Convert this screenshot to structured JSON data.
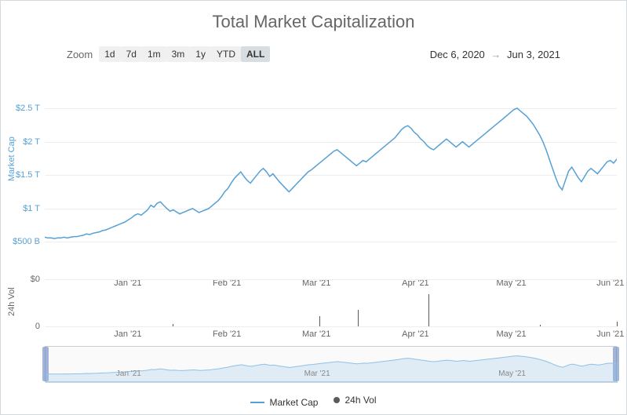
{
  "title": "Total Market Capitalization",
  "zoom": {
    "label": "Zoom",
    "options": [
      "1d",
      "7d",
      "1m",
      "3m",
      "1y",
      "YTD",
      "ALL"
    ],
    "active": "ALL"
  },
  "date_range": {
    "from": "Dec 6, 2020",
    "to": "Jun 3, 2021"
  },
  "colors": {
    "line": "#56a0d6",
    "line_light": "#8fc1e6",
    "grid": "#eeeeee",
    "vol_bar": "#5a5a5a",
    "title": "#666666",
    "axis_text": "#666666",
    "y_text": "#56a0d6",
    "border": "#d4d9de",
    "nav_mask": "rgba(102,133,194,0.18)",
    "nav_handle": "rgba(102,133,194,0.6)"
  },
  "main_chart": {
    "type": "line",
    "y_label": "Market Cap",
    "ylim": [
      0,
      2.7
    ],
    "y_ticks": [
      {
        "v": 0.5,
        "label": "$500 B"
      },
      {
        "v": 1.0,
        "label": "$1 T"
      },
      {
        "v": 1.5,
        "label": "$1.5 T"
      },
      {
        "v": 2.0,
        "label": "$2 T"
      },
      {
        "v": 2.5,
        "label": "$2.5 T"
      }
    ],
    "x_ticks": [
      {
        "t": 26,
        "label": "Jan '21"
      },
      {
        "t": 57,
        "label": "Feb '21"
      },
      {
        "t": 85,
        "label": "Mar '21"
      },
      {
        "t": 116,
        "label": "Apr '21"
      },
      {
        "t": 146,
        "label": "May '21"
      },
      {
        "t": 177,
        "label": "Jun '21"
      }
    ],
    "x_domain": [
      0,
      179
    ],
    "series": [
      0.57,
      0.56,
      0.56,
      0.55,
      0.56,
      0.56,
      0.57,
      0.56,
      0.57,
      0.58,
      0.58,
      0.59,
      0.6,
      0.62,
      0.61,
      0.63,
      0.64,
      0.65,
      0.67,
      0.68,
      0.7,
      0.72,
      0.74,
      0.76,
      0.78,
      0.8,
      0.83,
      0.86,
      0.9,
      0.92,
      0.9,
      0.94,
      0.98,
      1.05,
      1.02,
      1.08,
      1.1,
      1.05,
      1.0,
      0.96,
      0.98,
      0.95,
      0.92,
      0.94,
      0.96,
      0.98,
      1.0,
      0.97,
      0.94,
      0.96,
      0.98,
      1.0,
      1.04,
      1.08,
      1.12,
      1.18,
      1.25,
      1.3,
      1.38,
      1.45,
      1.5,
      1.55,
      1.48,
      1.42,
      1.38,
      1.44,
      1.5,
      1.56,
      1.6,
      1.55,
      1.48,
      1.52,
      1.46,
      1.4,
      1.35,
      1.3,
      1.25,
      1.3,
      1.35,
      1.4,
      1.45,
      1.5,
      1.55,
      1.58,
      1.62,
      1.66,
      1.7,
      1.74,
      1.78,
      1.82,
      1.86,
      1.88,
      1.84,
      1.8,
      1.76,
      1.72,
      1.68,
      1.64,
      1.68,
      1.72,
      1.7,
      1.74,
      1.78,
      1.82,
      1.86,
      1.9,
      1.94,
      1.98,
      2.02,
      2.06,
      2.12,
      2.18,
      2.22,
      2.24,
      2.2,
      2.14,
      2.1,
      2.04,
      2.0,
      1.94,
      1.9,
      1.88,
      1.92,
      1.96,
      2.0,
      2.04,
      2.0,
      1.96,
      1.92,
      1.96,
      2.0,
      1.96,
      1.92,
      1.96,
      2.0,
      2.04,
      2.08,
      2.12,
      2.16,
      2.2,
      2.24,
      2.28,
      2.32,
      2.36,
      2.4,
      2.44,
      2.48,
      2.5,
      2.46,
      2.42,
      2.38,
      2.32,
      2.26,
      2.18,
      2.1,
      2.0,
      1.88,
      1.74,
      1.6,
      1.46,
      1.34,
      1.28,
      1.42,
      1.56,
      1.62,
      1.54,
      1.46,
      1.4,
      1.48,
      1.56,
      1.6,
      1.56,
      1.52,
      1.58,
      1.64,
      1.7,
      1.72,
      1.68,
      1.74
    ],
    "line_width": 1.5
  },
  "vol_chart": {
    "type": "bar",
    "y_label": "24h Vol",
    "y_ticks": [
      {
        "v": 0,
        "label": "0"
      },
      {
        "v": 1,
        "label": "$0"
      }
    ],
    "ylim": [
      0,
      1
    ],
    "bars": [
      {
        "t": 40,
        "h": 0.05
      },
      {
        "t": 86,
        "h": 0.22
      },
      {
        "t": 98,
        "h": 0.35
      },
      {
        "t": 120,
        "h": 0.68
      },
      {
        "t": 155,
        "h": 0.04
      },
      {
        "t": 179,
        "h": 0.1
      }
    ]
  },
  "nav_chart": {
    "x_ticks": [
      {
        "t": 26,
        "label": "Jan '21"
      },
      {
        "t": 85,
        "label": "Mar '21"
      },
      {
        "t": 146,
        "label": "May '21"
      }
    ],
    "mask_left_pct": 0,
    "mask_right_pct": 0
  },
  "legend": {
    "items": [
      {
        "type": "line",
        "color": "#56a0d6",
        "label": "Market Cap"
      },
      {
        "type": "dot",
        "color": "#5a5a5a",
        "label": "24h Vol"
      }
    ]
  }
}
